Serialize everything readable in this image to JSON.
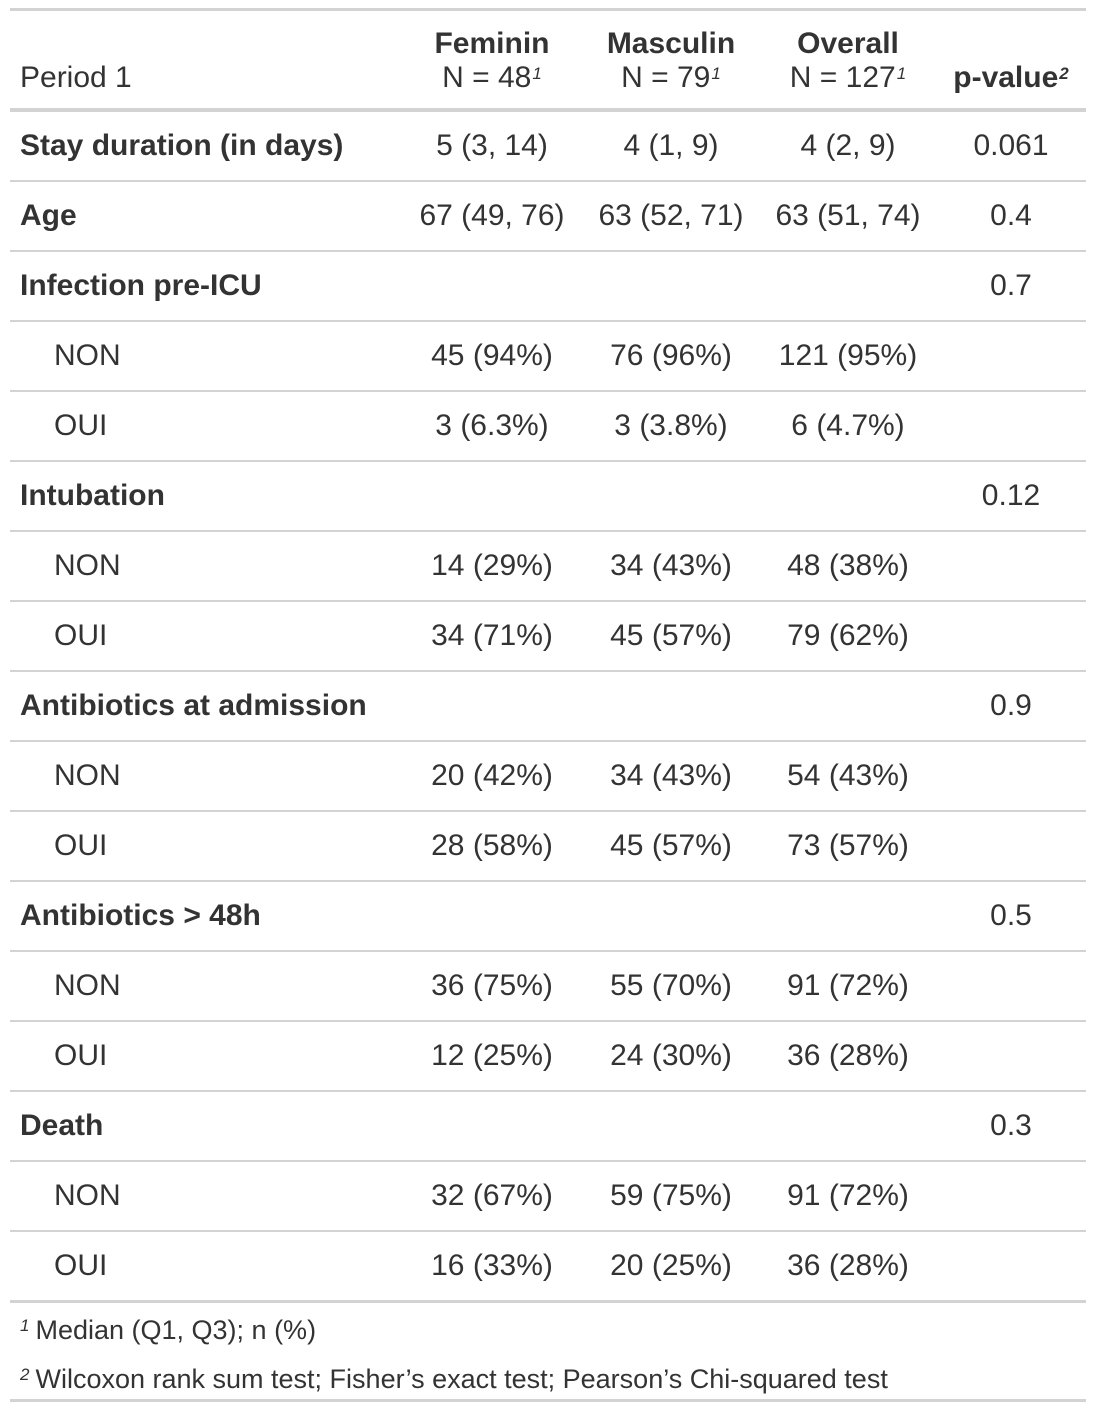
{
  "header": {
    "period": "Period 1",
    "columns": [
      {
        "name": "Feminin",
        "n": "N = 48",
        "footnote_mark": "1"
      },
      {
        "name": "Masculin",
        "n": "N = 79",
        "footnote_mark": "1"
      },
      {
        "name": "Overall",
        "n": "N = 127",
        "footnote_mark": "1"
      }
    ],
    "pvalue": "p-value",
    "pvalue_mark": "2"
  },
  "rows": [
    {
      "label": "Stay duration (in days)",
      "values": [
        "5 (3, 14)",
        "4 (1, 9)",
        "4 (2, 9)",
        "0.061"
      ]
    },
    {
      "label": "Age",
      "values": [
        "67 (49, 76)",
        "63 (52, 71)",
        "63 (51, 74)",
        "0.4"
      ]
    },
    {
      "label": "Infection pre-ICU",
      "values": [
        "",
        "",
        "",
        "0.7"
      ]
    },
    {
      "label": "NON",
      "values": [
        "45 (94%)",
        "76 (96%)",
        "121 (95%)",
        ""
      ]
    },
    {
      "label": "OUI",
      "values": [
        "3 (6.3%)",
        "3 (3.8%)",
        "6 (4.7%)",
        ""
      ]
    },
    {
      "label": "Intubation",
      "values": [
        "",
        "",
        "",
        "0.12"
      ]
    },
    {
      "label": "NON",
      "values": [
        "14 (29%)",
        "34 (43%)",
        "48 (38%)",
        ""
      ]
    },
    {
      "label": "OUI",
      "values": [
        "34 (71%)",
        "45 (57%)",
        "79 (62%)",
        ""
      ]
    },
    {
      "label": "Antibiotics at admission",
      "values": [
        "",
        "",
        "",
        "0.9"
      ]
    },
    {
      "label": "NON",
      "values": [
        "20 (42%)",
        "34 (43%)",
        "54 (43%)",
        ""
      ]
    },
    {
      "label": "OUI",
      "values": [
        "28 (58%)",
        "45 (57%)",
        "73 (57%)",
        ""
      ]
    },
    {
      "label": "Antibiotics > 48h",
      "values": [
        "",
        "",
        "",
        "0.5"
      ]
    },
    {
      "label": "NON",
      "values": [
        "36 (75%)",
        "55 (70%)",
        "91 (72%)",
        ""
      ]
    },
    {
      "label": "OUI",
      "values": [
        "12 (25%)",
        "24 (30%)",
        "36 (28%)",
        ""
      ]
    },
    {
      "label": "Death",
      "values": [
        "",
        "",
        "",
        "0.3"
      ]
    },
    {
      "label": "NON",
      "values": [
        "32 (67%)",
        "59 (75%)",
        "91 (72%)",
        ""
      ]
    },
    {
      "label": "OUI",
      "values": [
        "16 (33%)",
        "20 (25%)",
        "36 (28%)",
        ""
      ]
    }
  ],
  "footnotes": [
    {
      "mark": "1",
      "text": "Median (Q1, Q3); n (%)"
    },
    {
      "mark": "2",
      "text": "Wilcoxon rank sum test; Fisher’s exact test; Pearson’s Chi-squared test"
    }
  ]
}
